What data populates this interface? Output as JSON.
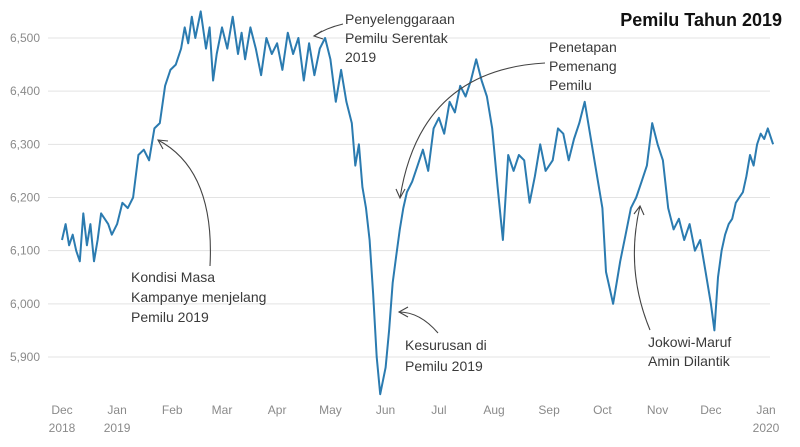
{
  "chart_data": {
    "type": "line",
    "title": "Pemilu Tahun 2019",
    "xlabel": "",
    "ylabel": "",
    "ylim": [
      5820,
      6560
    ],
    "grid": "horizontal",
    "color": "#2b7bb0",
    "y_ticks": [
      {
        "value": 5900,
        "label": "5,900"
      },
      {
        "value": 6000,
        "label": "6,000"
      },
      {
        "value": 6100,
        "label": "6,100"
      },
      {
        "value": 6200,
        "label": "6,200"
      },
      {
        "value": 6300,
        "label": "6,300"
      },
      {
        "value": 6400,
        "label": "6,400"
      },
      {
        "value": 6500,
        "label": "6,500"
      }
    ],
    "x_ticks": [
      {
        "date": "2018-12-01",
        "line1": "Dec",
        "line2": "2018"
      },
      {
        "date": "2019-01-01",
        "line1": "Jan",
        "line2": "2019"
      },
      {
        "date": "2019-02-01",
        "line1": "Feb",
        "line2": ""
      },
      {
        "date": "2019-03-01",
        "line1": "Mar",
        "line2": ""
      },
      {
        "date": "2019-04-01",
        "line1": "Apr",
        "line2": ""
      },
      {
        "date": "2019-05-01",
        "line1": "May",
        "line2": ""
      },
      {
        "date": "2019-06-01",
        "line1": "Jun",
        "line2": ""
      },
      {
        "date": "2019-07-01",
        "line1": "Jul",
        "line2": ""
      },
      {
        "date": "2019-08-01",
        "line1": "Aug",
        "line2": ""
      },
      {
        "date": "2019-09-01",
        "line1": "Sep",
        "line2": ""
      },
      {
        "date": "2019-10-01",
        "line1": "Oct",
        "line2": ""
      },
      {
        "date": "2019-11-01",
        "line1": "Nov",
        "line2": ""
      },
      {
        "date": "2019-12-01",
        "line1": "Dec",
        "line2": ""
      },
      {
        "date": "2020-01-01",
        "line1": "Jan",
        "line2": "2020"
      }
    ],
    "series": [
      {
        "points": [
          [
            "2018-12-01",
            6120
          ],
          [
            "2018-12-03",
            6150
          ],
          [
            "2018-12-05",
            6110
          ],
          [
            "2018-12-07",
            6130
          ],
          [
            "2018-12-09",
            6100
          ],
          [
            "2018-12-11",
            6080
          ],
          [
            "2018-12-13",
            6170
          ],
          [
            "2018-12-15",
            6110
          ],
          [
            "2018-12-17",
            6150
          ],
          [
            "2018-12-19",
            6080
          ],
          [
            "2018-12-21",
            6120
          ],
          [
            "2018-12-23",
            6170
          ],
          [
            "2018-12-25",
            6160
          ],
          [
            "2018-12-27",
            6150
          ],
          [
            "2018-12-29",
            6130
          ],
          [
            "2019-01-01",
            6150
          ],
          [
            "2019-01-04",
            6190
          ],
          [
            "2019-01-07",
            6180
          ],
          [
            "2019-01-10",
            6200
          ],
          [
            "2019-01-13",
            6280
          ],
          [
            "2019-01-16",
            6290
          ],
          [
            "2019-01-19",
            6270
          ],
          [
            "2019-01-22",
            6330
          ],
          [
            "2019-01-25",
            6340
          ],
          [
            "2019-01-28",
            6410
          ],
          [
            "2019-01-31",
            6440
          ],
          [
            "2019-02-03",
            6450
          ],
          [
            "2019-02-06",
            6480
          ],
          [
            "2019-02-08",
            6520
          ],
          [
            "2019-02-10",
            6490
          ],
          [
            "2019-02-12",
            6540
          ],
          [
            "2019-02-14",
            6500
          ],
          [
            "2019-02-17",
            6550
          ],
          [
            "2019-02-20",
            6480
          ],
          [
            "2019-02-22",
            6520
          ],
          [
            "2019-02-24",
            6420
          ],
          [
            "2019-02-26",
            6470
          ],
          [
            "2019-03-01",
            6520
          ],
          [
            "2019-03-04",
            6480
          ],
          [
            "2019-03-07",
            6540
          ],
          [
            "2019-03-10",
            6470
          ],
          [
            "2019-03-12",
            6510
          ],
          [
            "2019-03-14",
            6460
          ],
          [
            "2019-03-17",
            6520
          ],
          [
            "2019-03-20",
            6480
          ],
          [
            "2019-03-23",
            6430
          ],
          [
            "2019-03-26",
            6500
          ],
          [
            "2019-03-29",
            6470
          ],
          [
            "2019-04-01",
            6490
          ],
          [
            "2019-04-04",
            6440
          ],
          [
            "2019-04-07",
            6510
          ],
          [
            "2019-04-10",
            6470
          ],
          [
            "2019-04-13",
            6500
          ],
          [
            "2019-04-16",
            6420
          ],
          [
            "2019-04-19",
            6490
          ],
          [
            "2019-04-22",
            6430
          ],
          [
            "2019-04-25",
            6480
          ],
          [
            "2019-04-28",
            6500
          ],
          [
            "2019-05-01",
            6460
          ],
          [
            "2019-05-04",
            6380
          ],
          [
            "2019-05-07",
            6440
          ],
          [
            "2019-05-10",
            6380
          ],
          [
            "2019-05-13",
            6340
          ],
          [
            "2019-05-15",
            6260
          ],
          [
            "2019-05-17",
            6300
          ],
          [
            "2019-05-19",
            6220
          ],
          [
            "2019-05-21",
            6180
          ],
          [
            "2019-05-23",
            6120
          ],
          [
            "2019-05-25",
            6020
          ],
          [
            "2019-05-27",
            5900
          ],
          [
            "2019-05-29",
            5830
          ],
          [
            "2019-06-01",
            5880
          ],
          [
            "2019-06-03",
            5950
          ],
          [
            "2019-06-05",
            6040
          ],
          [
            "2019-06-07",
            6090
          ],
          [
            "2019-06-09",
            6140
          ],
          [
            "2019-06-11",
            6180
          ],
          [
            "2019-06-13",
            6210
          ],
          [
            "2019-06-16",
            6230
          ],
          [
            "2019-06-19",
            6260
          ],
          [
            "2019-06-22",
            6290
          ],
          [
            "2019-06-25",
            6250
          ],
          [
            "2019-06-28",
            6330
          ],
          [
            "2019-07-01",
            6350
          ],
          [
            "2019-07-04",
            6320
          ],
          [
            "2019-07-07",
            6380
          ],
          [
            "2019-07-10",
            6360
          ],
          [
            "2019-07-13",
            6410
          ],
          [
            "2019-07-16",
            6390
          ],
          [
            "2019-07-19",
            6420
          ],
          [
            "2019-07-22",
            6460
          ],
          [
            "2019-07-25",
            6420
          ],
          [
            "2019-07-28",
            6390
          ],
          [
            "2019-07-31",
            6330
          ],
          [
            "2019-08-03",
            6220
          ],
          [
            "2019-08-06",
            6120
          ],
          [
            "2019-08-09",
            6280
          ],
          [
            "2019-08-12",
            6250
          ],
          [
            "2019-08-15",
            6280
          ],
          [
            "2019-08-18",
            6270
          ],
          [
            "2019-08-21",
            6190
          ],
          [
            "2019-08-24",
            6240
          ],
          [
            "2019-08-27",
            6300
          ],
          [
            "2019-08-30",
            6250
          ],
          [
            "2019-09-03",
            6270
          ],
          [
            "2019-09-06",
            6330
          ],
          [
            "2019-09-09",
            6320
          ],
          [
            "2019-09-12",
            6270
          ],
          [
            "2019-09-15",
            6310
          ],
          [
            "2019-09-18",
            6340
          ],
          [
            "2019-09-21",
            6380
          ],
          [
            "2019-09-24",
            6320
          ],
          [
            "2019-09-27",
            6260
          ],
          [
            "2019-10-01",
            6180
          ],
          [
            "2019-10-03",
            6060
          ],
          [
            "2019-10-05",
            6030
          ],
          [
            "2019-10-07",
            6000
          ],
          [
            "2019-10-09",
            6040
          ],
          [
            "2019-10-11",
            6080
          ],
          [
            "2019-10-14",
            6130
          ],
          [
            "2019-10-17",
            6180
          ],
          [
            "2019-10-20",
            6200
          ],
          [
            "2019-10-23",
            6230
          ],
          [
            "2019-10-26",
            6260
          ],
          [
            "2019-10-29",
            6340
          ],
          [
            "2019-11-01",
            6300
          ],
          [
            "2019-11-04",
            6270
          ],
          [
            "2019-11-07",
            6180
          ],
          [
            "2019-11-10",
            6140
          ],
          [
            "2019-11-13",
            6160
          ],
          [
            "2019-11-16",
            6120
          ],
          [
            "2019-11-19",
            6150
          ],
          [
            "2019-11-22",
            6100
          ],
          [
            "2019-11-25",
            6120
          ],
          [
            "2019-11-28",
            6060
          ],
          [
            "2019-12-01",
            6000
          ],
          [
            "2019-12-03",
            5950
          ],
          [
            "2019-12-05",
            6050
          ],
          [
            "2019-12-07",
            6100
          ],
          [
            "2019-12-09",
            6130
          ],
          [
            "2019-12-11",
            6150
          ],
          [
            "2019-12-13",
            6160
          ],
          [
            "2019-12-15",
            6190
          ],
          [
            "2019-12-17",
            6200
          ],
          [
            "2019-12-19",
            6210
          ],
          [
            "2019-12-21",
            6240
          ],
          [
            "2019-12-23",
            6280
          ],
          [
            "2019-12-25",
            6260
          ],
          [
            "2019-12-27",
            6300
          ],
          [
            "2019-12-29",
            6320
          ],
          [
            "2019-12-31",
            6310
          ],
          [
            "2020-01-02",
            6330
          ],
          [
            "2020-01-05",
            6300
          ]
        ]
      }
    ],
    "annotations": [
      {
        "id": "penyelenggaraan",
        "lines": [
          "Penyelenggaraan",
          "Pemilu Serentak",
          "2019"
        ]
      },
      {
        "id": "penetapan",
        "lines": [
          "Penetapan",
          "Pemenang",
          "Pemilu"
        ]
      },
      {
        "id": "kampanye",
        "lines": [
          "Kondisi Masa",
          "Kampanye menjelang",
          "Pemilu 2019"
        ]
      },
      {
        "id": "kesurusan",
        "lines": [
          "Kesurusan di",
          "Pemilu 2019"
        ]
      },
      {
        "id": "jokowi",
        "lines": [
          "Jokowi-Maruf",
          "Amin Dilantik"
        ]
      }
    ]
  }
}
